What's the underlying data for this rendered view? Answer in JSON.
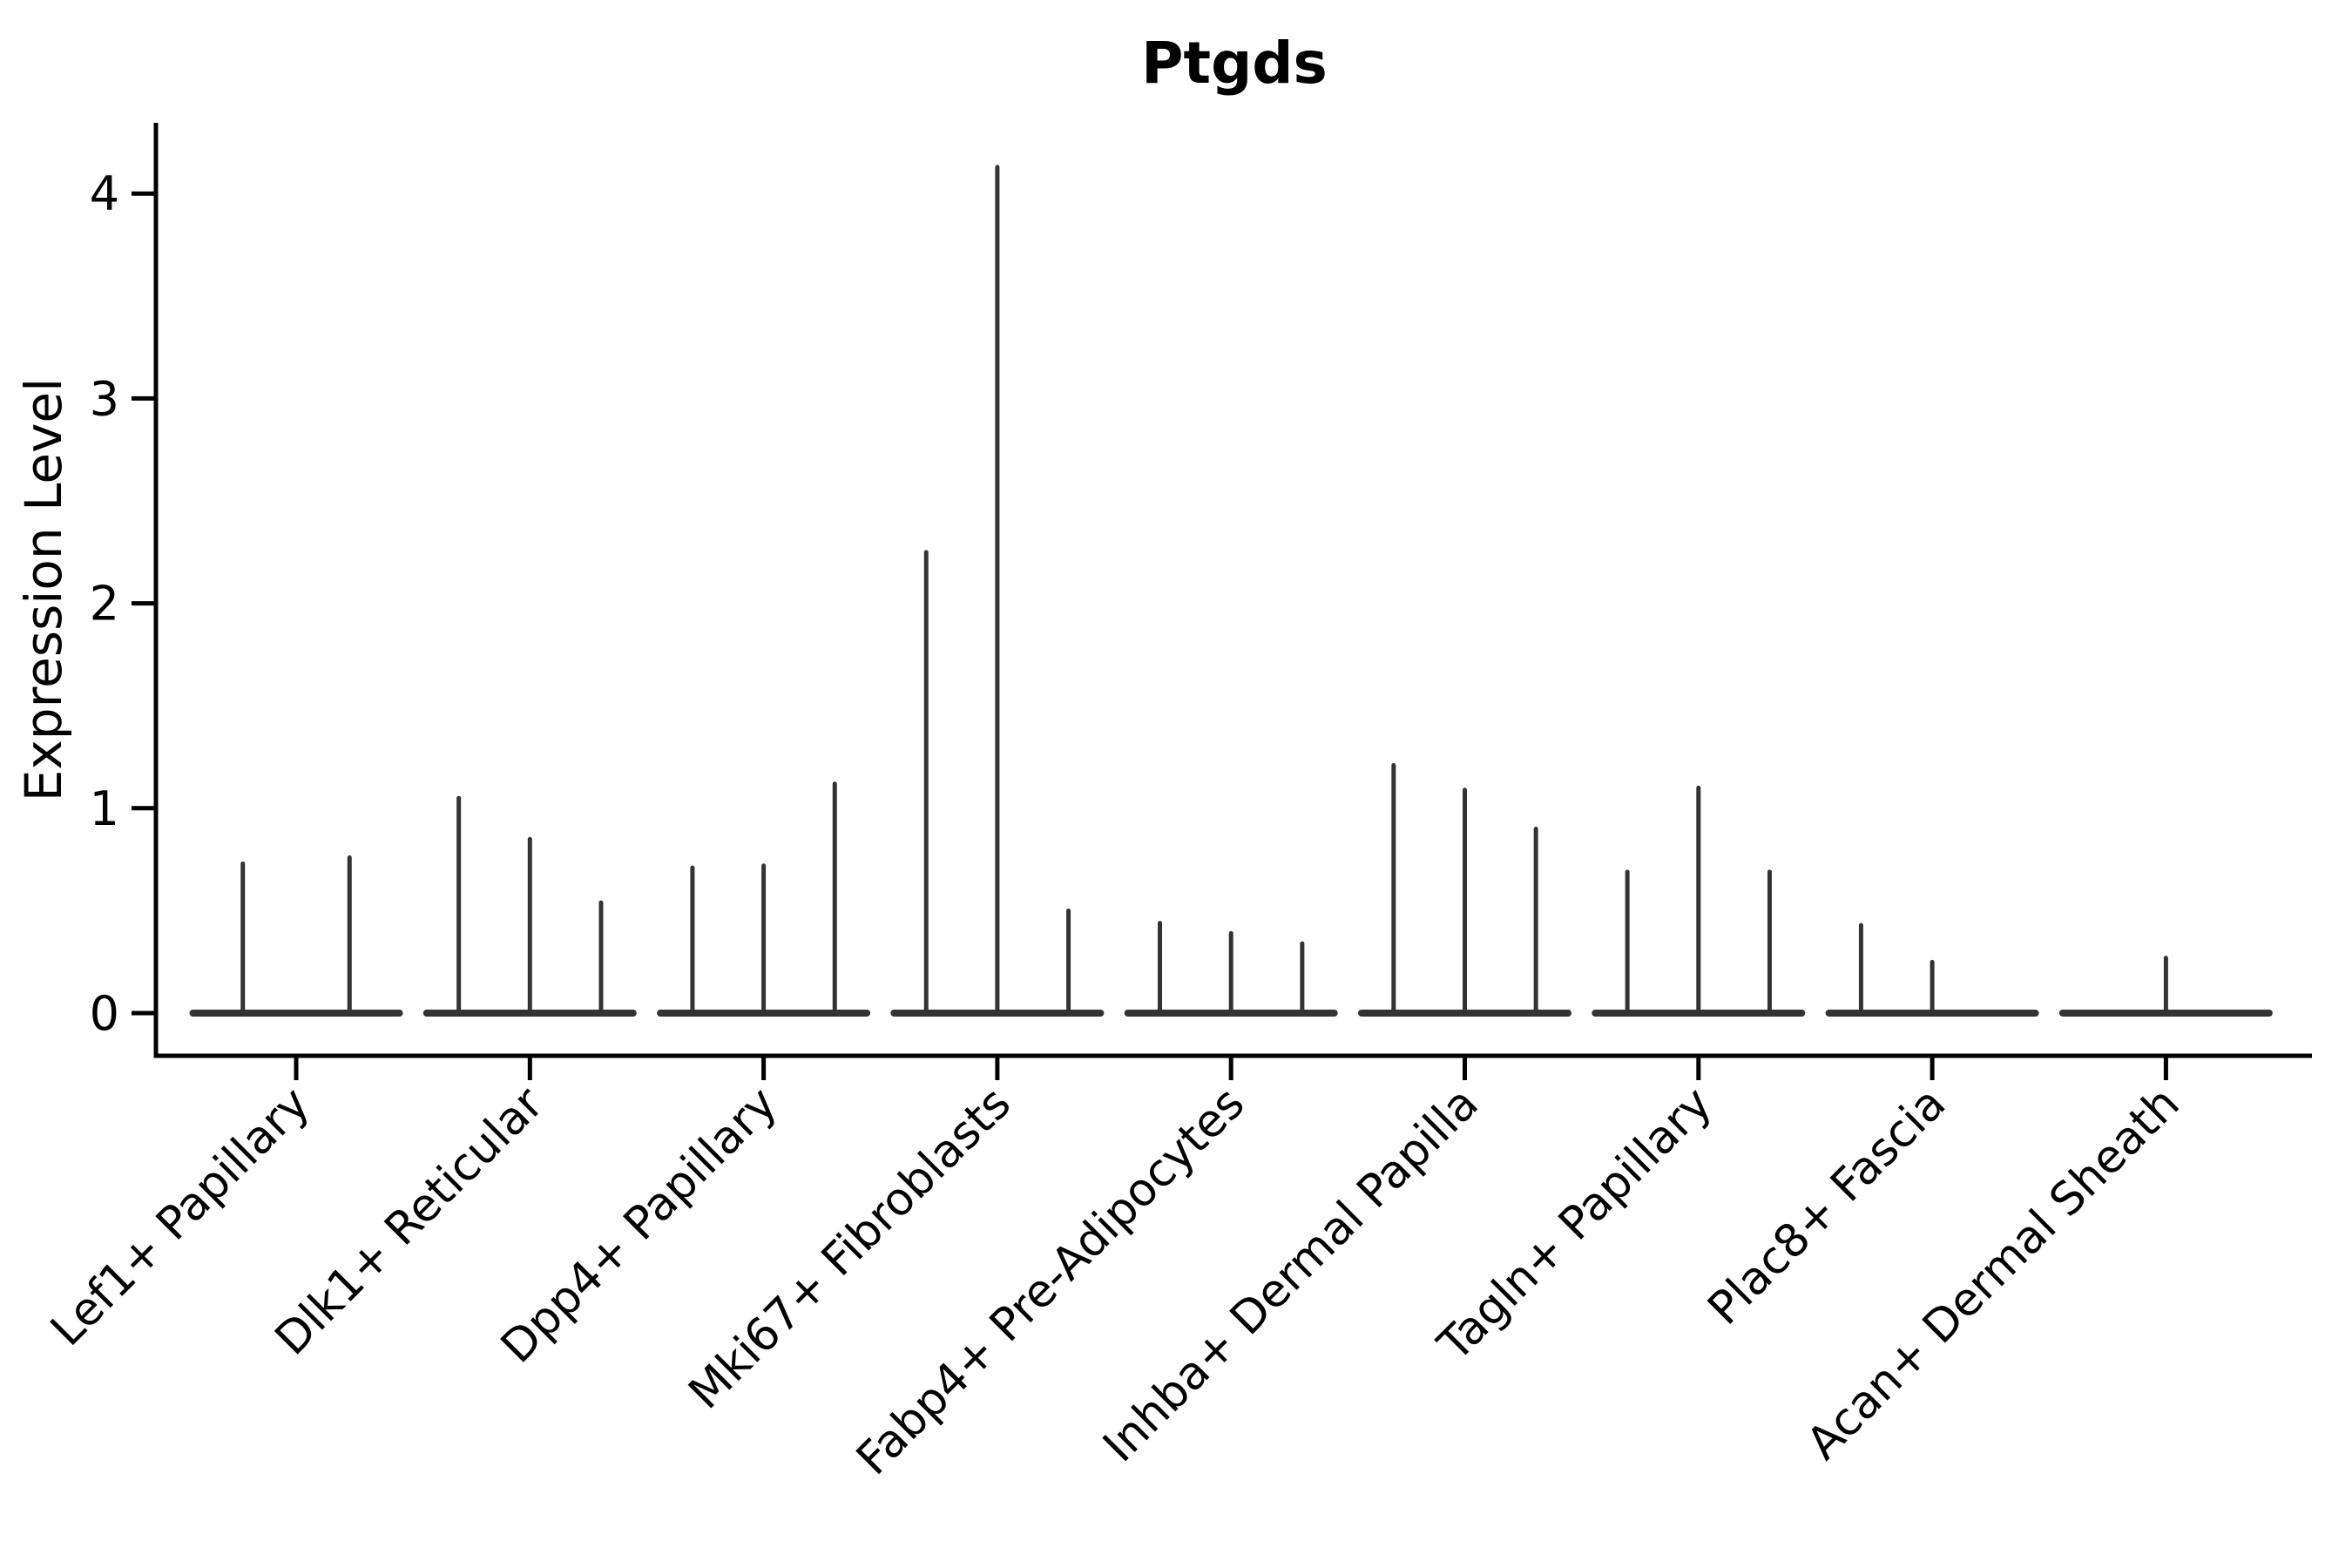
{
  "title": "Ptgds",
  "colors": {
    "violin_line": "#333333",
    "axis_line": "#000000",
    "text": "#000000",
    "background": "#ffffff"
  },
  "chart_data": {
    "type": "violin",
    "title": "Ptgds",
    "xlabel": "",
    "ylabel": "Expression Level",
    "ylim": [
      -0.21,
      4.35
    ],
    "y_ticks": [
      0,
      1,
      2,
      3,
      4
    ],
    "grid": false,
    "legend": "none",
    "description": "Stacked-violin style expression plot; each category shows 2-3 extremely thin violins (spikes) whose peaks are the max expression level, with a flat collapsed base at 0.",
    "categories": [
      "Lef1+ Papillary",
      "Dlk1+ Reticular",
      "Dpp4+ Papillary",
      "Mki67+ Fibroblasts",
      "Fabp4+ Pre-Adipocytes",
      "Inhba+ Dermal Papilla",
      "Tagln+ Papillary",
      "Plac8+ Fascia",
      "Acan+ Dermal Sheath"
    ],
    "series": [
      {
        "category": "Lef1+ Papillary",
        "violin_peaks": [
          0.74,
          0.77
        ]
      },
      {
        "category": "Dlk1+ Reticular",
        "violin_peaks": [
          1.06,
          0.86,
          0.55
        ]
      },
      {
        "category": "Dpp4+ Papillary",
        "violin_peaks": [
          0.72,
          0.73,
          1.13
        ]
      },
      {
        "category": "Mki67+ Fibroblasts",
        "violin_peaks": [
          2.26,
          4.14,
          0.51
        ]
      },
      {
        "category": "Fabp4+ Pre-Adipocytes",
        "violin_peaks": [
          0.45,
          0.4,
          0.35
        ]
      },
      {
        "category": "Inhba+ Dermal Papilla",
        "violin_peaks": [
          1.22,
          1.1,
          0.91
        ]
      },
      {
        "category": "Tagln+ Papillary",
        "violin_peaks": [
          0.7,
          1.11,
          0.7
        ]
      },
      {
        "category": "Plac8+ Fascia",
        "violin_peaks": [
          0.44,
          0.26,
          0
        ]
      },
      {
        "category": "Acan+ Dermal Sheath",
        "violin_peaks": [
          0,
          0.28,
          0
        ]
      }
    ]
  }
}
